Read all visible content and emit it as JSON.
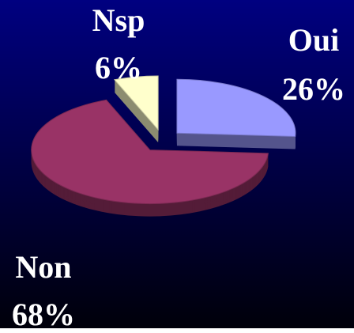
{
  "chart_data": {
    "type": "pie",
    "categories": [
      "Oui",
      "Non",
      "Nsp"
    ],
    "values": [
      26,
      68,
      6
    ],
    "value_labels": [
      "26%",
      "68%",
      "6%"
    ],
    "colors": [
      "#9999ff",
      "#993366",
      "#ffffcc"
    ]
  }
}
